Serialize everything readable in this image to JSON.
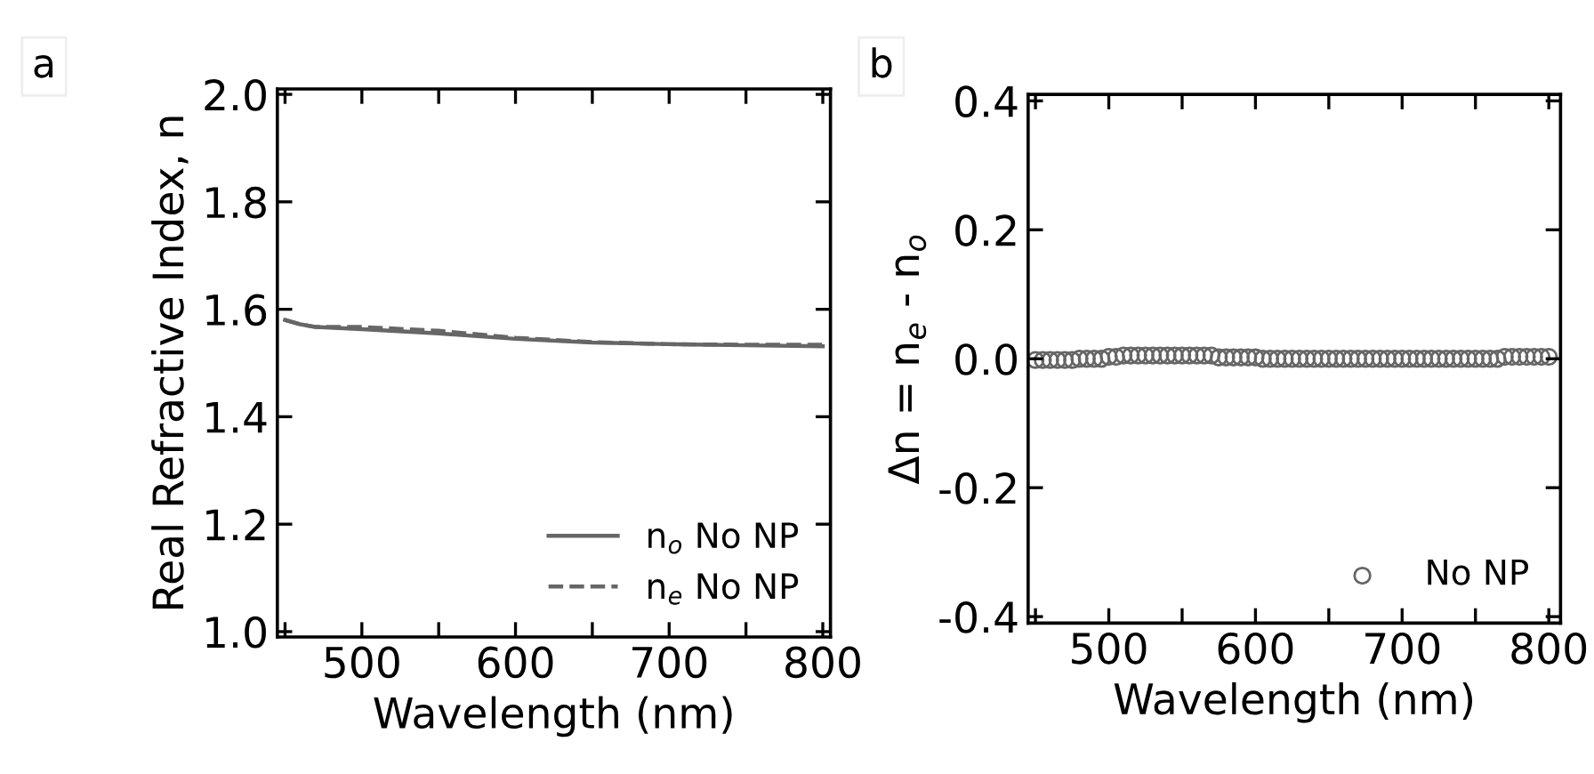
{
  "chart_data": [
    {
      "type": "line",
      "annotations": [
        "a"
      ],
      "xlabel": "Wavelength (nm)",
      "ylabel": "Real Refractive Index, n",
      "xlim": [
        445,
        805
      ],
      "xticks": [
        {
          "value": 450,
          "label": null
        },
        500,
        {
          "value": 550,
          "label": null
        },
        600,
        {
          "value": 650,
          "label": null
        },
        700,
        {
          "value": 750,
          "label": null
        },
        800
      ],
      "ylim": [
        0.99,
        2.01
      ],
      "yticks": [
        {
          "value": 1,
          "label": "1.0"
        },
        1.2,
        1.4,
        1.6,
        1.8,
        {
          "value": 2,
          "label": "2.0"
        }
      ],
      "legend": "bottom right",
      "grid": false,
      "series": [
        {
          "name": "n$_{o}$ No NP",
          "color": "#666666",
          "line_style": "solid",
          "x": [
            450,
            460,
            470,
            500,
            550,
            600,
            650,
            700,
            750,
            800
          ],
          "values": [
            1.58,
            1.572,
            1.567,
            1.563,
            1.555,
            1.545,
            1.538,
            1.535,
            1.533,
            1.531
          ]
        },
        {
          "name": "n$_{e}$ No NP",
          "color": "#666666",
          "line_style": "dashed",
          "x": [
            450,
            460,
            470,
            500,
            550,
            600,
            650,
            700,
            750,
            800
          ],
          "values": [
            1.58,
            1.572,
            1.567,
            1.567,
            1.56,
            1.547,
            1.539,
            1.535,
            1.534,
            1.534
          ]
        }
      ]
    },
    {
      "type": "scatter",
      "annotations": [
        "b"
      ],
      "xlabel": "Wavelength (nm)",
      "ylabel": "Δn = n$_{e}$ - n$_{o}$",
      "xlim": [
        445,
        808
      ],
      "xticks": [
        {
          "value": 450,
          "label": null
        },
        500,
        {
          "value": 550,
          "label": null
        },
        600,
        {
          "value": 650,
          "label": null
        },
        700,
        {
          "value": 750,
          "label": null
        },
        800
      ],
      "ylim": [
        -0.41,
        0.41
      ],
      "yticks": [
        -0.4,
        -0.2,
        {
          "value": 0,
          "label": "0.0"
        },
        0.2,
        0.4
      ],
      "legend": "bottom right",
      "grid": false,
      "marker": "circle",
      "series": [
        {
          "name": "No NP",
          "color": "#666666",
          "x": [
            450,
            455,
            460,
            465,
            470,
            475,
            480,
            485,
            490,
            495,
            500,
            505,
            510,
            515,
            520,
            525,
            530,
            535,
            540,
            545,
            550,
            555,
            560,
            565,
            570,
            575,
            580,
            585,
            590,
            595,
            600,
            605,
            610,
            615,
            620,
            625,
            630,
            635,
            640,
            645,
            650,
            655,
            660,
            665,
            670,
            675,
            680,
            685,
            690,
            695,
            700,
            705,
            710,
            715,
            720,
            725,
            730,
            735,
            740,
            745,
            750,
            755,
            760,
            765,
            770,
            775,
            780,
            785,
            790,
            795,
            800
          ],
          "values": [
            -0.002,
            -0.002,
            -0.002,
            -0.002,
            -0.002,
            -0.002,
            0.0,
            0.0,
            0.0,
            0.0,
            0.003,
            0.003,
            0.005,
            0.005,
            0.005,
            0.005,
            0.005,
            0.005,
            0.005,
            0.005,
            0.005,
            0.005,
            0.005,
            0.005,
            0.005,
            0.002,
            0.002,
            0.002,
            0.002,
            0.002,
            0.002,
            0.0,
            0.0,
            0.0,
            0.0,
            0.0,
            0.0,
            0.0,
            0.0,
            0.0,
            0.0,
            0.0,
            0.0,
            0.0,
            0.0,
            0.0,
            0.0,
            0.0,
            0.0,
            0.0,
            0.0,
            0.0,
            0.0,
            0.0,
            0.0,
            0.0,
            0.0,
            0.0,
            0.0,
            0.0,
            0.0,
            0.0,
            0.0,
            0.0,
            0.003,
            0.003,
            0.003,
            0.003,
            0.003,
            0.003,
            0.003
          ]
        }
      ]
    }
  ]
}
